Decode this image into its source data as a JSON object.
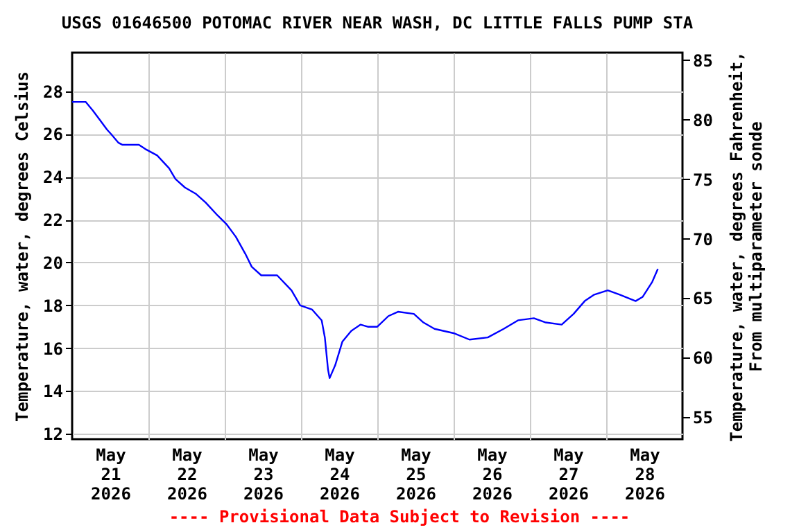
{
  "chart_data": {
    "type": "line",
    "title": "USGS 01646500 POTOMAC RIVER NEAR WASH, DC LITTLE FALLS PUMP STA",
    "ylabel": "Temperature, water, degrees Celsius",
    "y2label": "Temperature, water, degrees Fahrenheit, From multiparameter sonde",
    "annotations": [
      "---- Provisional Data Subject to Revision ----"
    ],
    "x": [
      "2026-05-21T00:00",
      "2026-05-21T04:15",
      "2026-05-21T06:30",
      "2026-05-21T08:30",
      "2026-05-21T11:00",
      "2026-05-21T12:15",
      "2026-05-21T14:30",
      "2026-05-21T15:45",
      "2026-05-21T21:00",
      "2026-05-21T23:00",
      "2026-05-22T02:45",
      "2026-05-22T06:30",
      "2026-05-22T08:30",
      "2026-05-22T11:30",
      "2026-05-22T15:00",
      "2026-05-22T18:00",
      "2026-05-22T21:45",
      "2026-05-23T00:30",
      "2026-05-23T03:30",
      "2026-05-23T06:30",
      "2026-05-23T08:30",
      "2026-05-23T11:30",
      "2026-05-23T16:30",
      "2026-05-23T21:00",
      "2026-05-23T23:45",
      "2026-05-24T03:30",
      "2026-05-24T06:30",
      "2026-05-24T07:30",
      "2026-05-24T08:30",
      "2026-05-24T09:00",
      "2026-05-24T10:45",
      "2026-05-24T13:00",
      "2026-05-24T15:45",
      "2026-05-24T18:45",
      "2026-05-24T21:00",
      "2026-05-25T00:00",
      "2026-05-25T03:30",
      "2026-05-25T06:30",
      "2026-05-25T11:30",
      "2026-05-25T14:30",
      "2026-05-25T18:00",
      "2026-05-26T00:00",
      "2026-05-26T05:00",
      "2026-05-26T10:45",
      "2026-05-26T15:45",
      "2026-05-26T20:15",
      "2026-05-27T01:15",
      "2026-05-27T05:00",
      "2026-05-27T10:00",
      "2026-05-27T13:45",
      "2026-05-27T17:15",
      "2026-05-27T20:15",
      "2026-05-28T00:30",
      "2026-05-28T04:15",
      "2026-05-28T09:15",
      "2026-05-28T11:30",
      "2026-05-28T14:30",
      "2026-05-28T16:15"
    ],
    "series": [
      {
        "color": "#0000ff",
        "values": [
          27.5,
          27.5,
          27.1,
          26.7,
          26.2,
          26.0,
          25.6,
          25.5,
          25.5,
          25.3,
          25.0,
          24.4,
          23.9,
          23.5,
          23.2,
          22.8,
          22.2,
          21.8,
          21.2,
          20.4,
          19.8,
          19.4,
          19.4,
          18.7,
          18.0,
          17.8,
          17.3,
          16.5,
          15.0,
          14.6,
          15.2,
          16.3,
          16.8,
          17.1,
          17.0,
          17.0,
          17.5,
          17.7,
          17.6,
          17.2,
          16.9,
          16.7,
          16.4,
          16.5,
          16.9,
          17.3,
          17.4,
          17.2,
          17.1,
          17.6,
          18.2,
          18.5,
          18.7,
          18.5,
          18.2,
          18.4,
          19.1,
          19.7
        ]
      }
    ],
    "xlim": [
      "2026-05-21T00:00",
      "2026-05-29T00:00"
    ],
    "xticks": [
      {
        "value": "2026-05-21T12:00",
        "label": "May 21 2026"
      },
      {
        "value": "2026-05-22T12:00",
        "label": "May 22 2026"
      },
      {
        "value": "2026-05-23T12:00",
        "label": "May 23 2026"
      },
      {
        "value": "2026-05-24T12:00",
        "label": "May 24 2026"
      },
      {
        "value": "2026-05-25T12:00",
        "label": "May 25 2026"
      },
      {
        "value": "2026-05-26T12:00",
        "label": "May 26 2026"
      },
      {
        "value": "2026-05-27T12:00",
        "label": "May 27 2026"
      },
      {
        "value": "2026-05-28T12:00",
        "label": "May 28 2026"
      },
      {
        "value": "2026-05-22T00:00",
        "label": null
      },
      {
        "value": "2026-05-23T00:00",
        "label": null
      },
      {
        "value": "2026-05-24T00:00",
        "label": null
      },
      {
        "value": "2026-05-25T00:00",
        "label": null
      },
      {
        "value": "2026-05-26T00:00",
        "label": null
      },
      {
        "value": "2026-05-27T00:00",
        "label": null
      },
      {
        "value": "2026-05-28T00:00",
        "label": null
      }
    ],
    "ylim": [
      11.75,
      29.8
    ],
    "yticks": [
      12,
      14,
      16,
      18,
      20,
      22,
      24,
      26,
      28
    ],
    "y2lim": [
      53.15,
      85.64
    ],
    "y2ticks": [
      55,
      60,
      65,
      70,
      75,
      80,
      85
    ],
    "grid": true
  }
}
